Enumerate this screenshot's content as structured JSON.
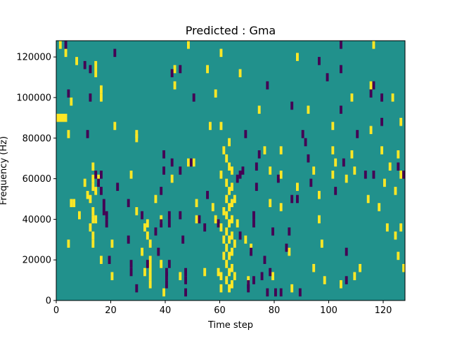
{
  "chart_data": {
    "type": "heatmap",
    "title": "Predicted : Gma",
    "xlabel": "Time step",
    "ylabel": "Frequency (Hz)",
    "xlim": [
      0,
      128
    ],
    "ylim": [
      0,
      128000
    ],
    "xticks": [
      0,
      20,
      40,
      60,
      80,
      100,
      120
    ],
    "yticks": [
      0,
      20000,
      40000,
      60000,
      80000,
      100000,
      120000
    ],
    "ytick_labels": [
      "0",
      "20000",
      "40000",
      "60000",
      "80000",
      "100000",
      "120000"
    ],
    "grid": false,
    "colormap": "viridis",
    "colors": {
      "background": "#21918c",
      "high": "#fde725",
      "low": "#440154"
    },
    "value_levels": {
      "low": -1,
      "background": 0,
      "high": 1
    },
    "cell_width_steps": 1,
    "cell_height_hz": 4000,
    "high_cells": [
      {
        "t": 0,
        "f": 88000,
        "w": 4
      },
      {
        "t": 1,
        "f": 124000
      },
      {
        "t": 3,
        "f": 120000
      },
      {
        "t": 4,
        "f": 80000
      },
      {
        "t": 5,
        "f": 96000
      },
      {
        "t": 5,
        "f": 46000
      },
      {
        "t": 6,
        "f": 46000
      },
      {
        "t": 4,
        "f": 26000
      },
      {
        "t": 7,
        "f": 116000
      },
      {
        "t": 8,
        "f": 40000
      },
      {
        "t": 10,
        "f": 56000
      },
      {
        "t": 11,
        "f": 50000
      },
      {
        "t": 12,
        "f": 48000
      },
      {
        "t": 12,
        "f": 34000
      },
      {
        "t": 13,
        "f": 64000
      },
      {
        "t": 13,
        "f": 58000
      },
      {
        "t": 13,
        "f": 54000
      },
      {
        "t": 13,
        "f": 42000
      },
      {
        "t": 13,
        "f": 38000
      },
      {
        "t": 13,
        "f": 30000
      },
      {
        "t": 13,
        "f": 26000
      },
      {
        "t": 14,
        "f": 114000
      },
      {
        "t": 14,
        "f": 110000
      },
      {
        "t": 14,
        "f": 52000
      },
      {
        "t": 14,
        "f": 38000
      },
      {
        "t": 15,
        "f": 58000
      },
      {
        "t": 16,
        "f": 98000
      },
      {
        "t": 16,
        "f": 102000
      },
      {
        "t": 16,
        "f": 18000
      },
      {
        "t": 20,
        "f": 26000
      },
      {
        "t": 20,
        "f": 10000
      },
      {
        "t": 21,
        "f": 84000
      },
      {
        "t": 27,
        "f": 60000
      },
      {
        "t": 29,
        "f": 80000
      },
      {
        "t": 29,
        "f": 78000
      },
      {
        "t": 29,
        "f": 42000
      },
      {
        "t": 31,
        "f": 22000
      },
      {
        "t": 32,
        "f": 34000
      },
      {
        "t": 32,
        "f": 12000
      },
      {
        "t": 33,
        "f": 36000
      },
      {
        "t": 33,
        "f": 30000
      },
      {
        "t": 34,
        "f": 26000
      },
      {
        "t": 34,
        "f": 18000
      },
      {
        "t": 34,
        "f": 14000
      },
      {
        "t": 34,
        "f": 10000
      },
      {
        "t": 34,
        "f": 6000
      },
      {
        "t": 36,
        "f": 48000
      },
      {
        "t": 38,
        "f": 16000
      },
      {
        "t": 38,
        "f": 38000
      },
      {
        "t": 39,
        "f": 2000
      },
      {
        "t": 42,
        "f": 58000
      },
      {
        "t": 43,
        "f": 112000
      },
      {
        "t": 43,
        "f": 104000
      },
      {
        "t": 45,
        "f": 10000
      },
      {
        "t": 48,
        "f": 124000
      },
      {
        "t": 48,
        "f": 66000
      },
      {
        "t": 50,
        "f": 66000
      },
      {
        "t": 51,
        "f": 46000
      },
      {
        "t": 51,
        "f": 38000
      },
      {
        "t": 54,
        "f": 12000
      },
      {
        "t": 55,
        "f": 112000
      },
      {
        "t": 56,
        "f": 84000
      },
      {
        "t": 57,
        "f": 44000
      },
      {
        "t": 58,
        "f": 100000
      },
      {
        "t": 58,
        "f": 38000
      },
      {
        "t": 60,
        "f": 120000
      },
      {
        "t": 60,
        "f": 60000
      },
      {
        "t": 60,
        "f": 34000
      },
      {
        "t": 59,
        "f": 12000
      },
      {
        "t": 60,
        "f": 84000
      },
      {
        "t": 61,
        "f": 72000
      },
      {
        "t": 61,
        "f": 28000
      },
      {
        "t": 61,
        "f": 20000
      },
      {
        "t": 60,
        "f": 10000
      },
      {
        "t": 60,
        "f": 4000
      },
      {
        "t": 61,
        "f": 42000
      },
      {
        "t": 62,
        "f": 68000
      },
      {
        "t": 62,
        "f": 56000
      },
      {
        "t": 62,
        "f": 48000
      },
      {
        "t": 62,
        "f": 40000
      },
      {
        "t": 62,
        "f": 32000
      },
      {
        "t": 62,
        "f": 24000
      },
      {
        "t": 62,
        "f": 16000
      },
      {
        "t": 62,
        "f": 8000
      },
      {
        "t": 63,
        "f": 76000
      },
      {
        "t": 63,
        "f": 64000
      },
      {
        "t": 63,
        "f": 52000
      },
      {
        "t": 63,
        "f": 44000
      },
      {
        "t": 63,
        "f": 36000
      },
      {
        "t": 63,
        "f": 28000
      },
      {
        "t": 63,
        "f": 20000
      },
      {
        "t": 63,
        "f": 12000
      },
      {
        "t": 63,
        "f": 4000
      },
      {
        "t": 64,
        "f": 62000
      },
      {
        "t": 64,
        "f": 54000
      },
      {
        "t": 64,
        "f": 46000
      },
      {
        "t": 64,
        "f": 38000
      },
      {
        "t": 64,
        "f": 30000
      },
      {
        "t": 64,
        "f": 22000
      },
      {
        "t": 64,
        "f": 14000
      },
      {
        "t": 64,
        "f": 6000
      },
      {
        "t": 65,
        "f": 48000
      },
      {
        "t": 65,
        "f": 26000
      },
      {
        "t": 65,
        "f": 10000
      },
      {
        "t": 66,
        "f": 36000
      },
      {
        "t": 67,
        "f": 110000
      },
      {
        "t": 69,
        "f": 28000
      },
      {
        "t": 70,
        "f": 8000
      },
      {
        "t": 71,
        "f": 24000
      },
      {
        "t": 74,
        "f": 92000
      },
      {
        "t": 76,
        "f": 72000
      },
      {
        "t": 78,
        "f": 62000
      },
      {
        "t": 78,
        "f": 46000
      },
      {
        "t": 79,
        "f": 10000
      },
      {
        "t": 82,
        "f": 72000
      },
      {
        "t": 82,
        "f": 60000
      },
      {
        "t": 82,
        "f": 44000
      },
      {
        "t": 85,
        "f": 22000
      },
      {
        "t": 86,
        "f": 4000
      },
      {
        "t": 88,
        "f": 118000
      },
      {
        "t": 88,
        "f": 54000
      },
      {
        "t": 92,
        "f": 92000
      },
      {
        "t": 94,
        "f": 62000
      },
      {
        "t": 94,
        "f": 14000
      },
      {
        "t": 96,
        "f": 50000
      },
      {
        "t": 96,
        "f": 38000
      },
      {
        "t": 97,
        "f": 26000
      },
      {
        "t": 98,
        "f": 8000
      },
      {
        "t": 101,
        "f": 84000
      },
      {
        "t": 101,
        "f": 72000
      },
      {
        "t": 101,
        "f": 60000
      },
      {
        "t": 102,
        "f": 66000
      },
      {
        "t": 104,
        "f": 6000
      },
      {
        "t": 106,
        "f": 58000
      },
      {
        "t": 108,
        "f": 98000
      },
      {
        "t": 108,
        "f": 70000
      },
      {
        "t": 109,
        "f": 62000
      },
      {
        "t": 109,
        "f": 10000
      },
      {
        "t": 111,
        "f": 14000
      },
      {
        "t": 114,
        "f": 48000
      },
      {
        "t": 115,
        "f": 104000
      },
      {
        "t": 115,
        "f": 82000
      },
      {
        "t": 116,
        "f": 124000
      },
      {
        "t": 118,
        "f": 44000
      },
      {
        "t": 119,
        "f": 72000
      },
      {
        "t": 120,
        "f": 56000
      },
      {
        "t": 121,
        "f": 34000
      },
      {
        "t": 122,
        "f": 64000
      },
      {
        "t": 123,
        "f": 98000
      },
      {
        "t": 124,
        "f": 52000
      },
      {
        "t": 124,
        "f": 30000
      },
      {
        "t": 125,
        "f": 20000
      },
      {
        "t": 125,
        "f": 70000
      },
      {
        "t": 126,
        "f": 34000
      },
      {
        "t": 126,
        "f": 86000
      },
      {
        "t": 126,
        "f": 60000
      },
      {
        "t": 127,
        "f": 14000
      }
    ],
    "low_cells": [
      {
        "t": 3,
        "f": 124000
      },
      {
        "t": 10,
        "f": 114000
      },
      {
        "t": 12,
        "f": 112000
      },
      {
        "t": 4,
        "f": 100000
      },
      {
        "t": 11,
        "f": 80000
      },
      {
        "t": 12,
        "f": 98000
      },
      {
        "t": 14,
        "f": 60000
      },
      {
        "t": 15,
        "f": 56000
      },
      {
        "t": 16,
        "f": 60000
      },
      {
        "t": 16,
        "f": 52000
      },
      {
        "t": 17,
        "f": 46000
      },
      {
        "t": 17,
        "f": 42000
      },
      {
        "t": 18,
        "f": 40000
      },
      {
        "t": 18,
        "f": 36000
      },
      {
        "t": 19,
        "f": 18000
      },
      {
        "t": 21,
        "f": 120000
      },
      {
        "t": 22,
        "f": 54000
      },
      {
        "t": 26,
        "f": 46000
      },
      {
        "t": 26,
        "f": 28000
      },
      {
        "t": 27,
        "f": 12000
      },
      {
        "t": 27,
        "f": 16000
      },
      {
        "t": 29,
        "f": 4000
      },
      {
        "t": 31,
        "f": 40000
      },
      {
        "t": 33,
        "f": 16000
      },
      {
        "t": 36,
        "f": 32000
      },
      {
        "t": 37,
        "f": 22000
      },
      {
        "t": 38,
        "f": 36000
      },
      {
        "t": 38,
        "f": 52000
      },
      {
        "t": 39,
        "f": 62000
      },
      {
        "t": 39,
        "f": 70000
      },
      {
        "t": 40,
        "f": 6000
      },
      {
        "t": 40,
        "f": 10000
      },
      {
        "t": 40,
        "f": 12000
      },
      {
        "t": 41,
        "f": 36000
      },
      {
        "t": 41,
        "f": 40000
      },
      {
        "t": 41,
        "f": 16000
      },
      {
        "t": 42,
        "f": 66000
      },
      {
        "t": 42,
        "f": 110000
      },
      {
        "t": 45,
        "f": 112000
      },
      {
        "t": 45,
        "f": 62000
      },
      {
        "t": 45,
        "f": 40000
      },
      {
        "t": 46,
        "f": 28000
      },
      {
        "t": 47,
        "f": 8000
      },
      {
        "t": 47,
        "f": 12000
      },
      {
        "t": 47,
        "f": 2000
      },
      {
        "t": 49,
        "f": 66000
      },
      {
        "t": 50,
        "f": 98000
      },
      {
        "t": 52,
        "f": 38000
      },
      {
        "t": 54,
        "f": 34000
      },
      {
        "t": 55,
        "f": 50000
      },
      {
        "t": 59,
        "f": 36000
      },
      {
        "t": 66,
        "f": 58000
      },
      {
        "t": 67,
        "f": 60000
      },
      {
        "t": 67,
        "f": 30000
      },
      {
        "t": 68,
        "f": 62000
      },
      {
        "t": 69,
        "f": 80000
      },
      {
        "t": 70,
        "f": 4000
      },
      {
        "t": 70,
        "f": 6000
      },
      {
        "t": 71,
        "f": 22000
      },
      {
        "t": 72,
        "f": 8000
      },
      {
        "t": 72,
        "f": 36000
      },
      {
        "t": 72,
        "f": 40000
      },
      {
        "t": 73,
        "f": 54000
      },
      {
        "t": 73,
        "f": 64000
      },
      {
        "t": 74,
        "f": 70000
      },
      {
        "t": 75,
        "f": 10000
      },
      {
        "t": 76,
        "f": 18000
      },
      {
        "t": 77,
        "f": 2000
      },
      {
        "t": 77,
        "f": 104000
      },
      {
        "t": 78,
        "f": 12000
      },
      {
        "t": 79,
        "f": 32000
      },
      {
        "t": 80,
        "f": 2000
      },
      {
        "t": 81,
        "f": 58000
      },
      {
        "t": 82,
        "f": 2000
      },
      {
        "t": 84,
        "f": 24000
      },
      {
        "t": 85,
        "f": 32000
      },
      {
        "t": 86,
        "f": 94000
      },
      {
        "t": 86,
        "f": 48000
      },
      {
        "t": 88,
        "f": 48000
      },
      {
        "t": 89,
        "f": 2000
      },
      {
        "t": 90,
        "f": 80000
      },
      {
        "t": 91,
        "f": 76000
      },
      {
        "t": 92,
        "f": 68000
      },
      {
        "t": 93,
        "f": 56000
      },
      {
        "t": 96,
        "f": 116000
      },
      {
        "t": 99,
        "f": 108000
      },
      {
        "t": 102,
        "f": 52000
      },
      {
        "t": 104,
        "f": 92000
      },
      {
        "t": 104,
        "f": 124000
      },
      {
        "t": 104,
        "f": 112000
      },
      {
        "t": 105,
        "f": 66000
      },
      {
        "t": 106,
        "f": 22000
      },
      {
        "t": 106,
        "f": 8000
      },
      {
        "t": 110,
        "f": 80000
      },
      {
        "t": 113,
        "f": 60000
      },
      {
        "t": 115,
        "f": 100000
      },
      {
        "t": 116,
        "f": 104000
      },
      {
        "t": 116,
        "f": 60000
      },
      {
        "t": 119,
        "f": 98000
      },
      {
        "t": 119,
        "f": 86000
      },
      {
        "t": 125,
        "f": 64000
      },
      {
        "t": 127,
        "f": 60000
      }
    ]
  }
}
